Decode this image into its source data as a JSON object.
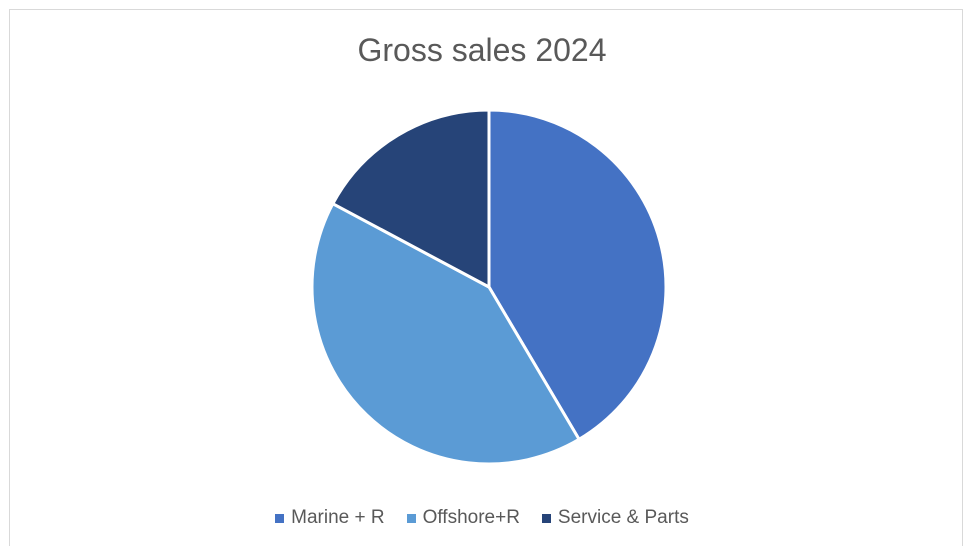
{
  "chart_data": {
    "type": "pie",
    "title": "Gross sales 2024",
    "categories": [
      "Marine + R",
      "Offshore+R",
      "Service & Parts"
    ],
    "values": [
      41.5,
      41.3,
      17.2
    ],
    "colors": [
      "#4472C4",
      "#5B9BD5",
      "#264478"
    ],
    "start_angle_deg": 0,
    "direction": "clockwise",
    "legend_position": "bottom"
  }
}
